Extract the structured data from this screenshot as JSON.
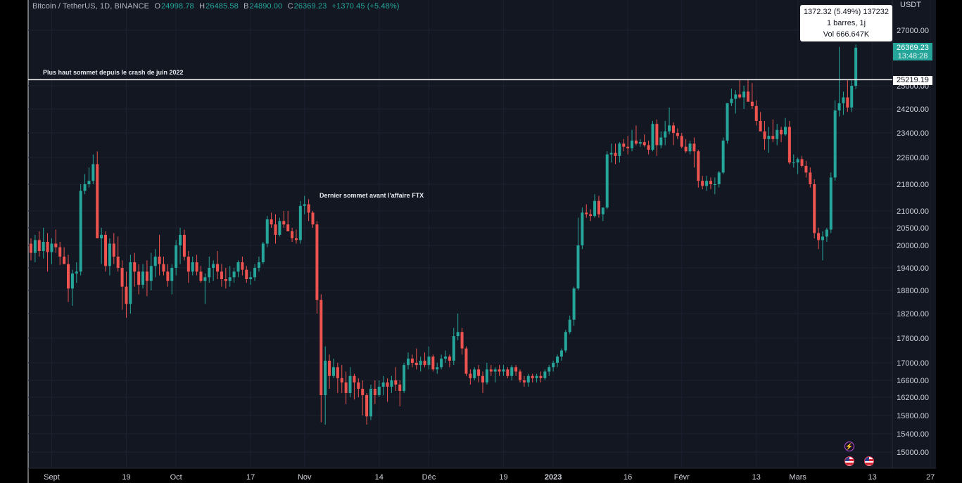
{
  "colors": {
    "background": "#000000",
    "plot_background": "#131722",
    "up": "#26a69a",
    "down": "#ef5350",
    "axis_text": "#d1d4dc",
    "hline": "#ffffff"
  },
  "header": {
    "symbol": "Bitcoin / TetherUS, 1D, BINANCE",
    "o_label": "O",
    "o_value": "24998.78",
    "h_label": "H",
    "h_value": "26485.58",
    "b_label": "B",
    "b_value": "24890.00",
    "c_label": "C",
    "c_value": "26369.23",
    "change": "+1370.45 (+5.48%)"
  },
  "tooltip": {
    "line1": "1372.32 (5.49%) 137232",
    "line2": "1 barres, 1j",
    "line3": "Vol 666.647K"
  },
  "price_axis": {
    "unit": "USDT"
  },
  "last_price_tag": {
    "price": "26369.23",
    "countdown": "13:48:28"
  },
  "hline_tag": {
    "price": "25219.19"
  },
  "annotations": {
    "resistance": "Plus haut sommet depuis le crash de juin 2022",
    "ftx": "Dernier sommet avant l'affaire FTX"
  },
  "events": {
    "bolt_icon": "lightning-event-icon",
    "flag_icon": "us-flag-event-icon"
  },
  "chart_data": {
    "type": "candlestick",
    "title": "",
    "xlabel": "",
    "ylabel": "",
    "ylim": [
      14700,
      27700
    ],
    "grid": true,
    "y_ticks": [
      27000,
      25000,
      24200,
      23400,
      22600,
      21800,
      21000,
      20500,
      20000,
      19400,
      18800,
      18200,
      17600,
      17000,
      16600,
      16200,
      15800,
      15400,
      15000
    ],
    "y_tick_labels": [
      "27000.00",
      "25000.00",
      "24200.00",
      "23400.00",
      "22600.00",
      "21800.00",
      "21000.00",
      "20500.00",
      "20000.00",
      "19400.00",
      "18800.00",
      "18200.00",
      "17600.00",
      "17000.00",
      "16600.00",
      "16200.00",
      "15800.00",
      "15400.00",
      "15000.00"
    ],
    "x_tick_labels": [
      "Sept",
      "19",
      "Oct",
      "17",
      "Nov",
      "14",
      "Déc",
      "19",
      "2023",
      "16",
      "Févr",
      "13",
      "Mars",
      "13",
      "27"
    ],
    "x_tick_index": [
      5,
      23,
      35,
      53,
      66,
      84,
      96,
      114,
      126,
      144,
      157,
      175,
      185,
      203,
      217
    ],
    "hline": 25219.19,
    "ohlc": [
      [
        20048,
        20200,
        19600,
        19800
      ],
      [
        19800,
        20300,
        19550,
        20150
      ],
      [
        20150,
        20400,
        19700,
        19850
      ],
      [
        19850,
        20500,
        19650,
        20100
      ],
      [
        20100,
        20350,
        19300,
        19820
      ],
      [
        19820,
        20200,
        19500,
        20050
      ],
      [
        20050,
        20450,
        19800,
        19950
      ],
      [
        19950,
        20100,
        19480,
        19700
      ],
      [
        19700,
        19950,
        19540,
        19500
      ],
      [
        19500,
        19750,
        18500,
        18850
      ],
      [
        18850,
        19350,
        18400,
        19250
      ],
      [
        19250,
        19550,
        19000,
        19300
      ],
      [
        19300,
        21800,
        19200,
        21600
      ],
      [
        21600,
        22100,
        21500,
        21800
      ],
      [
        21800,
        22300,
        21700,
        21900
      ],
      [
        21900,
        22700,
        21800,
        22400
      ],
      [
        22400,
        22800,
        20200,
        20200
      ],
      [
        20200,
        20500,
        19500,
        20300
      ],
      [
        20300,
        20400,
        19300,
        19450
      ],
      [
        19450,
        20200,
        19200,
        20050
      ],
      [
        20050,
        20350,
        19500,
        19700
      ],
      [
        19700,
        20250,
        19300,
        19400
      ],
      [
        19400,
        19600,
        18300,
        18900
      ],
      [
        18900,
        19300,
        18100,
        18450
      ],
      [
        18450,
        19750,
        18200,
        19550
      ],
      [
        19550,
        19800,
        18900,
        19300
      ],
      [
        19300,
        19500,
        18700,
        18950
      ],
      [
        18950,
        19500,
        18850,
        19300
      ],
      [
        19300,
        19600,
        18650,
        19050
      ],
      [
        19050,
        19800,
        18800,
        19450
      ],
      [
        19450,
        19900,
        19150,
        19700
      ],
      [
        19700,
        20300,
        19200,
        19500
      ],
      [
        19500,
        19700,
        19200,
        19300
      ],
      [
        19300,
        19500,
        18900,
        19050
      ],
      [
        19050,
        19500,
        18700,
        19400
      ],
      [
        19400,
        20150,
        19200,
        20000
      ],
      [
        20000,
        20500,
        19500,
        20300
      ],
      [
        20300,
        20450,
        19600,
        19700
      ],
      [
        19700,
        19850,
        19000,
        19300
      ],
      [
        19300,
        19700,
        19200,
        19550
      ],
      [
        19550,
        19750,
        19200,
        19300
      ],
      [
        19300,
        19450,
        19000,
        19050
      ],
      [
        19050,
        19250,
        18450,
        19150
      ],
      [
        19150,
        19700,
        19000,
        19400
      ],
      [
        19400,
        19600,
        19050,
        19500
      ],
      [
        19500,
        19850,
        19100,
        19300
      ],
      [
        19300,
        19500,
        18900,
        19100
      ],
      [
        19100,
        19400,
        18850,
        19050
      ],
      [
        19050,
        19450,
        18900,
        19150
      ],
      [
        19150,
        19400,
        19000,
        19300
      ],
      [
        19300,
        19600,
        19150,
        19550
      ],
      [
        19550,
        19700,
        19200,
        19350
      ],
      [
        19350,
        19450,
        19000,
        19100
      ],
      [
        19100,
        19300,
        18950,
        19150
      ],
      [
        19150,
        19500,
        19050,
        19400
      ],
      [
        19400,
        19700,
        19300,
        19550
      ],
      [
        19550,
        20100,
        19500,
        20050
      ],
      [
        20050,
        20850,
        19950,
        20750
      ],
      [
        20750,
        20950,
        20500,
        20600
      ],
      [
        20600,
        20900,
        20050,
        20300
      ],
      [
        20300,
        20800,
        20250,
        20700
      ],
      [
        20700,
        21000,
        20500,
        20600
      ],
      [
        20600,
        21000,
        20400,
        20400
      ],
      [
        20400,
        20500,
        20100,
        20200
      ],
      [
        20200,
        20450,
        20050,
        20150
      ],
      [
        20150,
        21300,
        20050,
        21150
      ],
      [
        21150,
        21450,
        20900,
        21200
      ],
      [
        21200,
        21350,
        20700,
        20950
      ],
      [
        20950,
        21000,
        20500,
        20600
      ],
      [
        20600,
        20700,
        18200,
        18550
      ],
      [
        18550,
        18700,
        15650,
        16250
      ],
      [
        16250,
        17400,
        15600,
        17050
      ],
      [
        17050,
        17200,
        16400,
        16700
      ],
      [
        16700,
        17100,
        16650,
        16900
      ],
      [
        16900,
        17000,
        16300,
        16650
      ],
      [
        16650,
        16950,
        16300,
        16550
      ],
      [
        16550,
        16800,
        16050,
        16300
      ],
      [
        16300,
        16900,
        16200,
        16700
      ],
      [
        16700,
        16750,
        16150,
        16550
      ],
      [
        16550,
        16650,
        16200,
        16400
      ],
      [
        16400,
        16600,
        15800,
        16250
      ],
      [
        16250,
        16300,
        15600,
        15780
      ],
      [
        15780,
        16500,
        15700,
        16400
      ],
      [
        16400,
        16600,
        16050,
        16250
      ],
      [
        16250,
        16600,
        16200,
        16450
      ],
      [
        16450,
        16700,
        16250,
        16550
      ],
      [
        16550,
        16650,
        16100,
        16450
      ],
      [
        16450,
        16700,
        16300,
        16600
      ],
      [
        16600,
        16900,
        16350,
        16500
      ],
      [
        16500,
        16600,
        16000,
        16350
      ],
      [
        16350,
        17000,
        16300,
        16950
      ],
      [
        16950,
        17250,
        16850,
        17100
      ],
      [
        17100,
        17200,
        16900,
        17000
      ],
      [
        17000,
        17350,
        16850,
        16950
      ],
      [
        16950,
        17150,
        16800,
        17050
      ],
      [
        17050,
        17250,
        16900,
        16950
      ],
      [
        16950,
        17400,
        16850,
        17150
      ],
      [
        17150,
        17200,
        16800,
        16850
      ],
      [
        16850,
        17000,
        16750,
        16900
      ],
      [
        16900,
        17200,
        16850,
        17100
      ],
      [
        17100,
        17300,
        17000,
        17150
      ],
      [
        17150,
        17200,
        16900,
        17050
      ],
      [
        17050,
        17850,
        16950,
        17650
      ],
      [
        17650,
        18200,
        17550,
        17750
      ],
      [
        17750,
        17850,
        17200,
        17350
      ],
      [
        17350,
        17400,
        16700,
        16750
      ],
      [
        16750,
        16850,
        16500,
        16650
      ],
      [
        16650,
        16900,
        16600,
        16850
      ],
      [
        16850,
        16950,
        16550,
        16700
      ],
      [
        16700,
        16800,
        16300,
        16550
      ],
      [
        16550,
        17000,
        16500,
        16850
      ],
      [
        16850,
        16950,
        16700,
        16800
      ],
      [
        16800,
        16900,
        16550,
        16850
      ],
      [
        16850,
        16950,
        16700,
        16800
      ],
      [
        16800,
        16950,
        16700,
        16850
      ],
      [
        16850,
        16900,
        16650,
        16700
      ],
      [
        16700,
        16950,
        16600,
        16900
      ],
      [
        16900,
        16950,
        16700,
        16800
      ],
      [
        16800,
        16850,
        16550,
        16600
      ],
      [
        16600,
        16700,
        16450,
        16550
      ],
      [
        16550,
        16750,
        16450,
        16700
      ],
      [
        16700,
        16750,
        16550,
        16650
      ],
      [
        16650,
        16750,
        16550,
        16700
      ],
      [
        16700,
        16800,
        16550,
        16650
      ],
      [
        16650,
        16850,
        16600,
        16800
      ],
      [
        16800,
        16950,
        16700,
        16900
      ],
      [
        16900,
        17050,
        16800,
        17000
      ],
      [
        17000,
        17200,
        16900,
        17150
      ],
      [
        17150,
        17350,
        17050,
        17300
      ],
      [
        17300,
        17800,
        17250,
        17750
      ],
      [
        17750,
        18150,
        17700,
        18050
      ],
      [
        18050,
        18900,
        17900,
        18850
      ],
      [
        18850,
        20800,
        18800,
        20000
      ],
      [
        20000,
        21100,
        19900,
        20950
      ],
      [
        20950,
        21200,
        20800,
        20900
      ],
      [
        20900,
        21050,
        20700,
        20850
      ],
      [
        20850,
        21500,
        20800,
        21300
      ],
      [
        21300,
        21450,
        20800,
        20900
      ],
      [
        20900,
        21100,
        20700,
        21100
      ],
      [
        21100,
        22800,
        21050,
        22700
      ],
      [
        22700,
        23050,
        22450,
        22750
      ],
      [
        22750,
        23050,
        22400,
        22650
      ],
      [
        22650,
        23100,
        22450,
        23050
      ],
      [
        23050,
        23200,
        22800,
        22950
      ],
      [
        22950,
        23300,
        22700,
        22900
      ],
      [
        22900,
        23500,
        22800,
        23150
      ],
      [
        23150,
        23650,
        23000,
        23050
      ],
      [
        23050,
        23200,
        22950,
        23100
      ],
      [
        23100,
        23350,
        22950,
        23000
      ],
      [
        23000,
        23150,
        22700,
        22850
      ],
      [
        22850,
        23800,
        22800,
        23700
      ],
      [
        23700,
        23850,
        22650,
        23000
      ],
      [
        23000,
        23450,
        22900,
        23250
      ],
      [
        23250,
        23800,
        23000,
        23450
      ],
      [
        23450,
        24250,
        23350,
        23650
      ],
      [
        23650,
        23750,
        23000,
        23400
      ],
      [
        23400,
        23550,
        23200,
        23300
      ],
      [
        23300,
        23400,
        22900,
        22950
      ],
      [
        22950,
        23200,
        22750,
        22800
      ],
      [
        22800,
        23150,
        22700,
        23050
      ],
      [
        23050,
        23250,
        22300,
        22800
      ],
      [
        22800,
        22850,
        21700,
        21900
      ],
      [
        21900,
        22050,
        21650,
        21750
      ],
      [
        21750,
        22050,
        21600,
        21900
      ],
      [
        21900,
        22000,
        21650,
        21800
      ],
      [
        21800,
        22000,
        21500,
        21800
      ],
      [
        21800,
        22200,
        21700,
        22150
      ],
      [
        22150,
        23250,
        22100,
        23150
      ],
      [
        23150,
        24400,
        23050,
        24400
      ],
      [
        24400,
        24900,
        24300,
        24550
      ],
      [
        24550,
        24850,
        24050,
        24700
      ],
      [
        24700,
        25200,
        24550,
        24600
      ],
      [
        24600,
        25000,
        24200,
        24800
      ],
      [
        24800,
        25250,
        24500,
        24450
      ],
      [
        24450,
        25100,
        24200,
        24300
      ],
      [
        24300,
        24500,
        23650,
        23800
      ],
      [
        23800,
        24100,
        23500,
        23450
      ],
      [
        23450,
        23800,
        22850,
        23200
      ],
      [
        23200,
        23600,
        22750,
        23300
      ],
      [
        23300,
        23850,
        23100,
        23200
      ],
      [
        23200,
        23700,
        23000,
        23500
      ],
      [
        23500,
        23600,
        23100,
        23350
      ],
      [
        23350,
        23900,
        23300,
        23600
      ],
      [
        23600,
        23800,
        22400,
        22450
      ],
      [
        22450,
        22700,
        22300,
        22450
      ],
      [
        22450,
        22600,
        22100,
        22550
      ],
      [
        22550,
        22650,
        22300,
        22350
      ],
      [
        22350,
        22500,
        22000,
        22150
      ],
      [
        22150,
        22300,
        21700,
        21800
      ],
      [
        21800,
        21950,
        20200,
        20350
      ],
      [
        20350,
        20500,
        19900,
        20150
      ],
      [
        20150,
        20400,
        19600,
        20250
      ],
      [
        20250,
        20500,
        20100,
        20450
      ],
      [
        20450,
        22150,
        20350,
        22000
      ],
      [
        22000,
        24500,
        21900,
        24150
      ],
      [
        24150,
        26400,
        23950,
        24400
      ],
      [
        24400,
        24800,
        24000,
        24600
      ],
      [
        24600,
        25200,
        24100,
        24250
      ],
      [
        24250,
        25200,
        24100,
        24998.78
      ],
      [
        24998.78,
        26485.58,
        24890,
        26369.23
      ]
    ]
  }
}
